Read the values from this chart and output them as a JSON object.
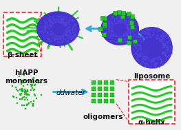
{
  "bg_color": "#f0f0f0",
  "green_color": "#22cc22",
  "green_dark": "#118811",
  "blue_liposome": "#4433cc",
  "blue_arrow": "#33aadd",
  "red_box": "#ee2222",
  "title_color": "#111111",
  "monomer_label": "hIAPP\nmonomers",
  "oligomers_label": "oligomers",
  "alpha_label": "α-helix",
  "liposome_label": "liposome",
  "beta_label": "β-sheet",
  "ddwater_label": "ddwater",
  "font_size_label": 7.5,
  "font_size_small": 6.5
}
